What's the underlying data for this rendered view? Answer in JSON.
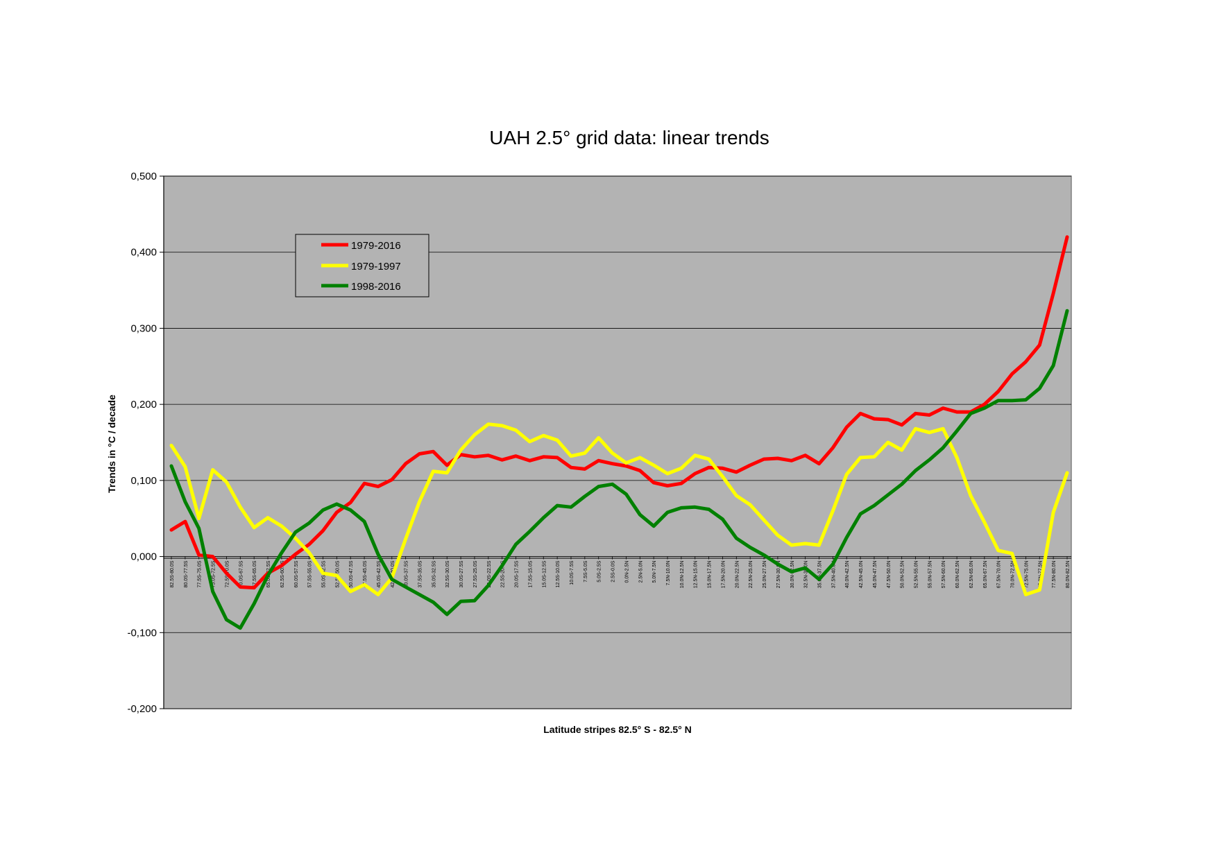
{
  "chart_data": {
    "type": "line",
    "title": "UAH 2.5° grid data: linear trends",
    "xlabel": "Latitude stripes 82.5° S - 82.5° N",
    "ylabel": "Trends in °C / decade",
    "ylim": [
      -0.2,
      0.5
    ],
    "yticks": [
      "-0,200",
      "-0,100",
      "0,000",
      "0,100",
      "0,200",
      "0,300",
      "0,400",
      "0,500"
    ],
    "grid": true,
    "legend_position": "top-left",
    "categories": [
      "82.5S-80.0S",
      "80.0S-77.5S",
      "77.5S-75.0S",
      "75.0S-72.5S",
      "72.5S-70.0S",
      "70.0S-67.5S",
      "67.5S-65.0S",
      "65.0S-62.5S",
      "62.5S-60.0S",
      "60.0S-57.5S",
      "57.5S-55.0S",
      "55.0S-52.5S",
      "52.5S-50.0S",
      "50.0S-47.5S",
      "47.5S-45.0S",
      "45.0S-42.5S",
      "42.5S-40.0S",
      "40.0S-37.5S",
      "37.5S-35.0S",
      "35.0S-32.5S",
      "32.5S-30.0S",
      "30.0S-27.5S",
      "27.5S-25.0S",
      "25.0S-22.5S",
      "22.5S-20.0S",
      "20.0S-17.5S",
      "17.5S-15.0S",
      "15.0S-12.5S",
      "12.5S-10.0S",
      "10.0S-7.5S",
      "7.5S-5.0S",
      "5.0S-2.5S",
      "2.5S-0.0S",
      "0.0N-2.5N",
      "2.5N-5.0N",
      "5.0N-7.5N",
      "7.5N-10.0N",
      "10.0N-12.5N",
      "12.5N-15.0N",
      "15.0N-17.5N",
      "17.5N-20.0N",
      "20.0N-22.5N",
      "22.5N-25.0N",
      "25.0N-27.5N",
      "27.5N-30.0N",
      "30.0N-32.5N",
      "32.5N-35.0N",
      "35.0N-37.5N",
      "37.5N-40.0N",
      "40.0N-42.5N",
      "42.5N-45.0N",
      "45.0N-47.5N",
      "47.5N-50.0N",
      "50.0N-52.5N",
      "52.5N-55.0N",
      "55.0N-57.5N",
      "57.5N-60.0N",
      "60.0N-62.5N",
      "62.5N-65.0N",
      "65.0N-67.5N",
      "67.5N-70.0N",
      "70.0N-72.5N",
      "72.5N-75.0N",
      "75.0N-77.5N",
      "77.5N-80.0N",
      "80.0N-82.5N"
    ],
    "series": [
      {
        "name": "1979-2016",
        "color": "#ff0000",
        "values": [
          0.035,
          0.046,
          0.002,
          0.0,
          -0.022,
          -0.04,
          -0.041,
          -0.022,
          -0.012,
          0.003,
          0.016,
          0.034,
          0.058,
          0.071,
          0.096,
          0.092,
          0.101,
          0.122,
          0.135,
          0.138,
          0.12,
          0.134,
          0.131,
          0.133,
          0.127,
          0.132,
          0.126,
          0.131,
          0.13,
          0.117,
          0.115,
          0.126,
          0.122,
          0.119,
          0.113,
          0.097,
          0.093,
          0.096,
          0.109,
          0.117,
          0.116,
          0.111,
          0.12,
          0.128,
          0.129,
          0.126,
          0.133,
          0.122,
          0.143,
          0.17,
          0.188,
          0.181,
          0.18,
          0.173,
          0.188,
          0.186,
          0.195,
          0.19,
          0.19,
          0.2,
          0.217,
          0.24,
          0.256,
          0.278,
          0.346,
          0.42
        ]
      },
      {
        "name": "1979-1997",
        "color": "#ffff00",
        "values": [
          0.146,
          0.118,
          0.05,
          0.114,
          0.098,
          0.065,
          0.038,
          0.051,
          0.04,
          0.024,
          0.005,
          -0.022,
          -0.025,
          -0.046,
          -0.037,
          -0.05,
          -0.028,
          0.023,
          0.072,
          0.112,
          0.11,
          0.14,
          0.16,
          0.174,
          0.172,
          0.166,
          0.151,
          0.159,
          0.153,
          0.132,
          0.136,
          0.156,
          0.136,
          0.123,
          0.13,
          0.12,
          0.109,
          0.116,
          0.133,
          0.128,
          0.105,
          0.08,
          0.068,
          0.048,
          0.028,
          0.015,
          0.017,
          0.015,
          0.06,
          0.108,
          0.13,
          0.131,
          0.15,
          0.14,
          0.168,
          0.163,
          0.168,
          0.13,
          0.08,
          0.045,
          0.008,
          0.004,
          -0.05,
          -0.044,
          0.058,
          0.11
        ]
      },
      {
        "name": "1998-2016",
        "color": "#008000",
        "values": [
          0.119,
          0.072,
          0.037,
          -0.046,
          -0.083,
          -0.094,
          -0.062,
          -0.025,
          0.005,
          0.032,
          0.044,
          0.061,
          0.069,
          0.061,
          0.046,
          0.003,
          -0.03,
          -0.04,
          -0.05,
          -0.06,
          -0.076,
          -0.059,
          -0.058,
          -0.038,
          -0.012,
          0.016,
          0.033,
          0.051,
          0.067,
          0.065,
          0.079,
          0.092,
          0.095,
          0.082,
          0.055,
          0.04,
          0.058,
          0.064,
          0.065,
          0.062,
          0.049,
          0.024,
          0.012,
          0.002,
          -0.01,
          -0.02,
          -0.015,
          -0.03,
          -0.01,
          0.025,
          0.056,
          0.067,
          0.081,
          0.095,
          0.113,
          0.127,
          0.143,
          0.165,
          0.188,
          0.195,
          0.205,
          0.205,
          0.206,
          0.221,
          0.251,
          0.323
        ]
      }
    ]
  }
}
